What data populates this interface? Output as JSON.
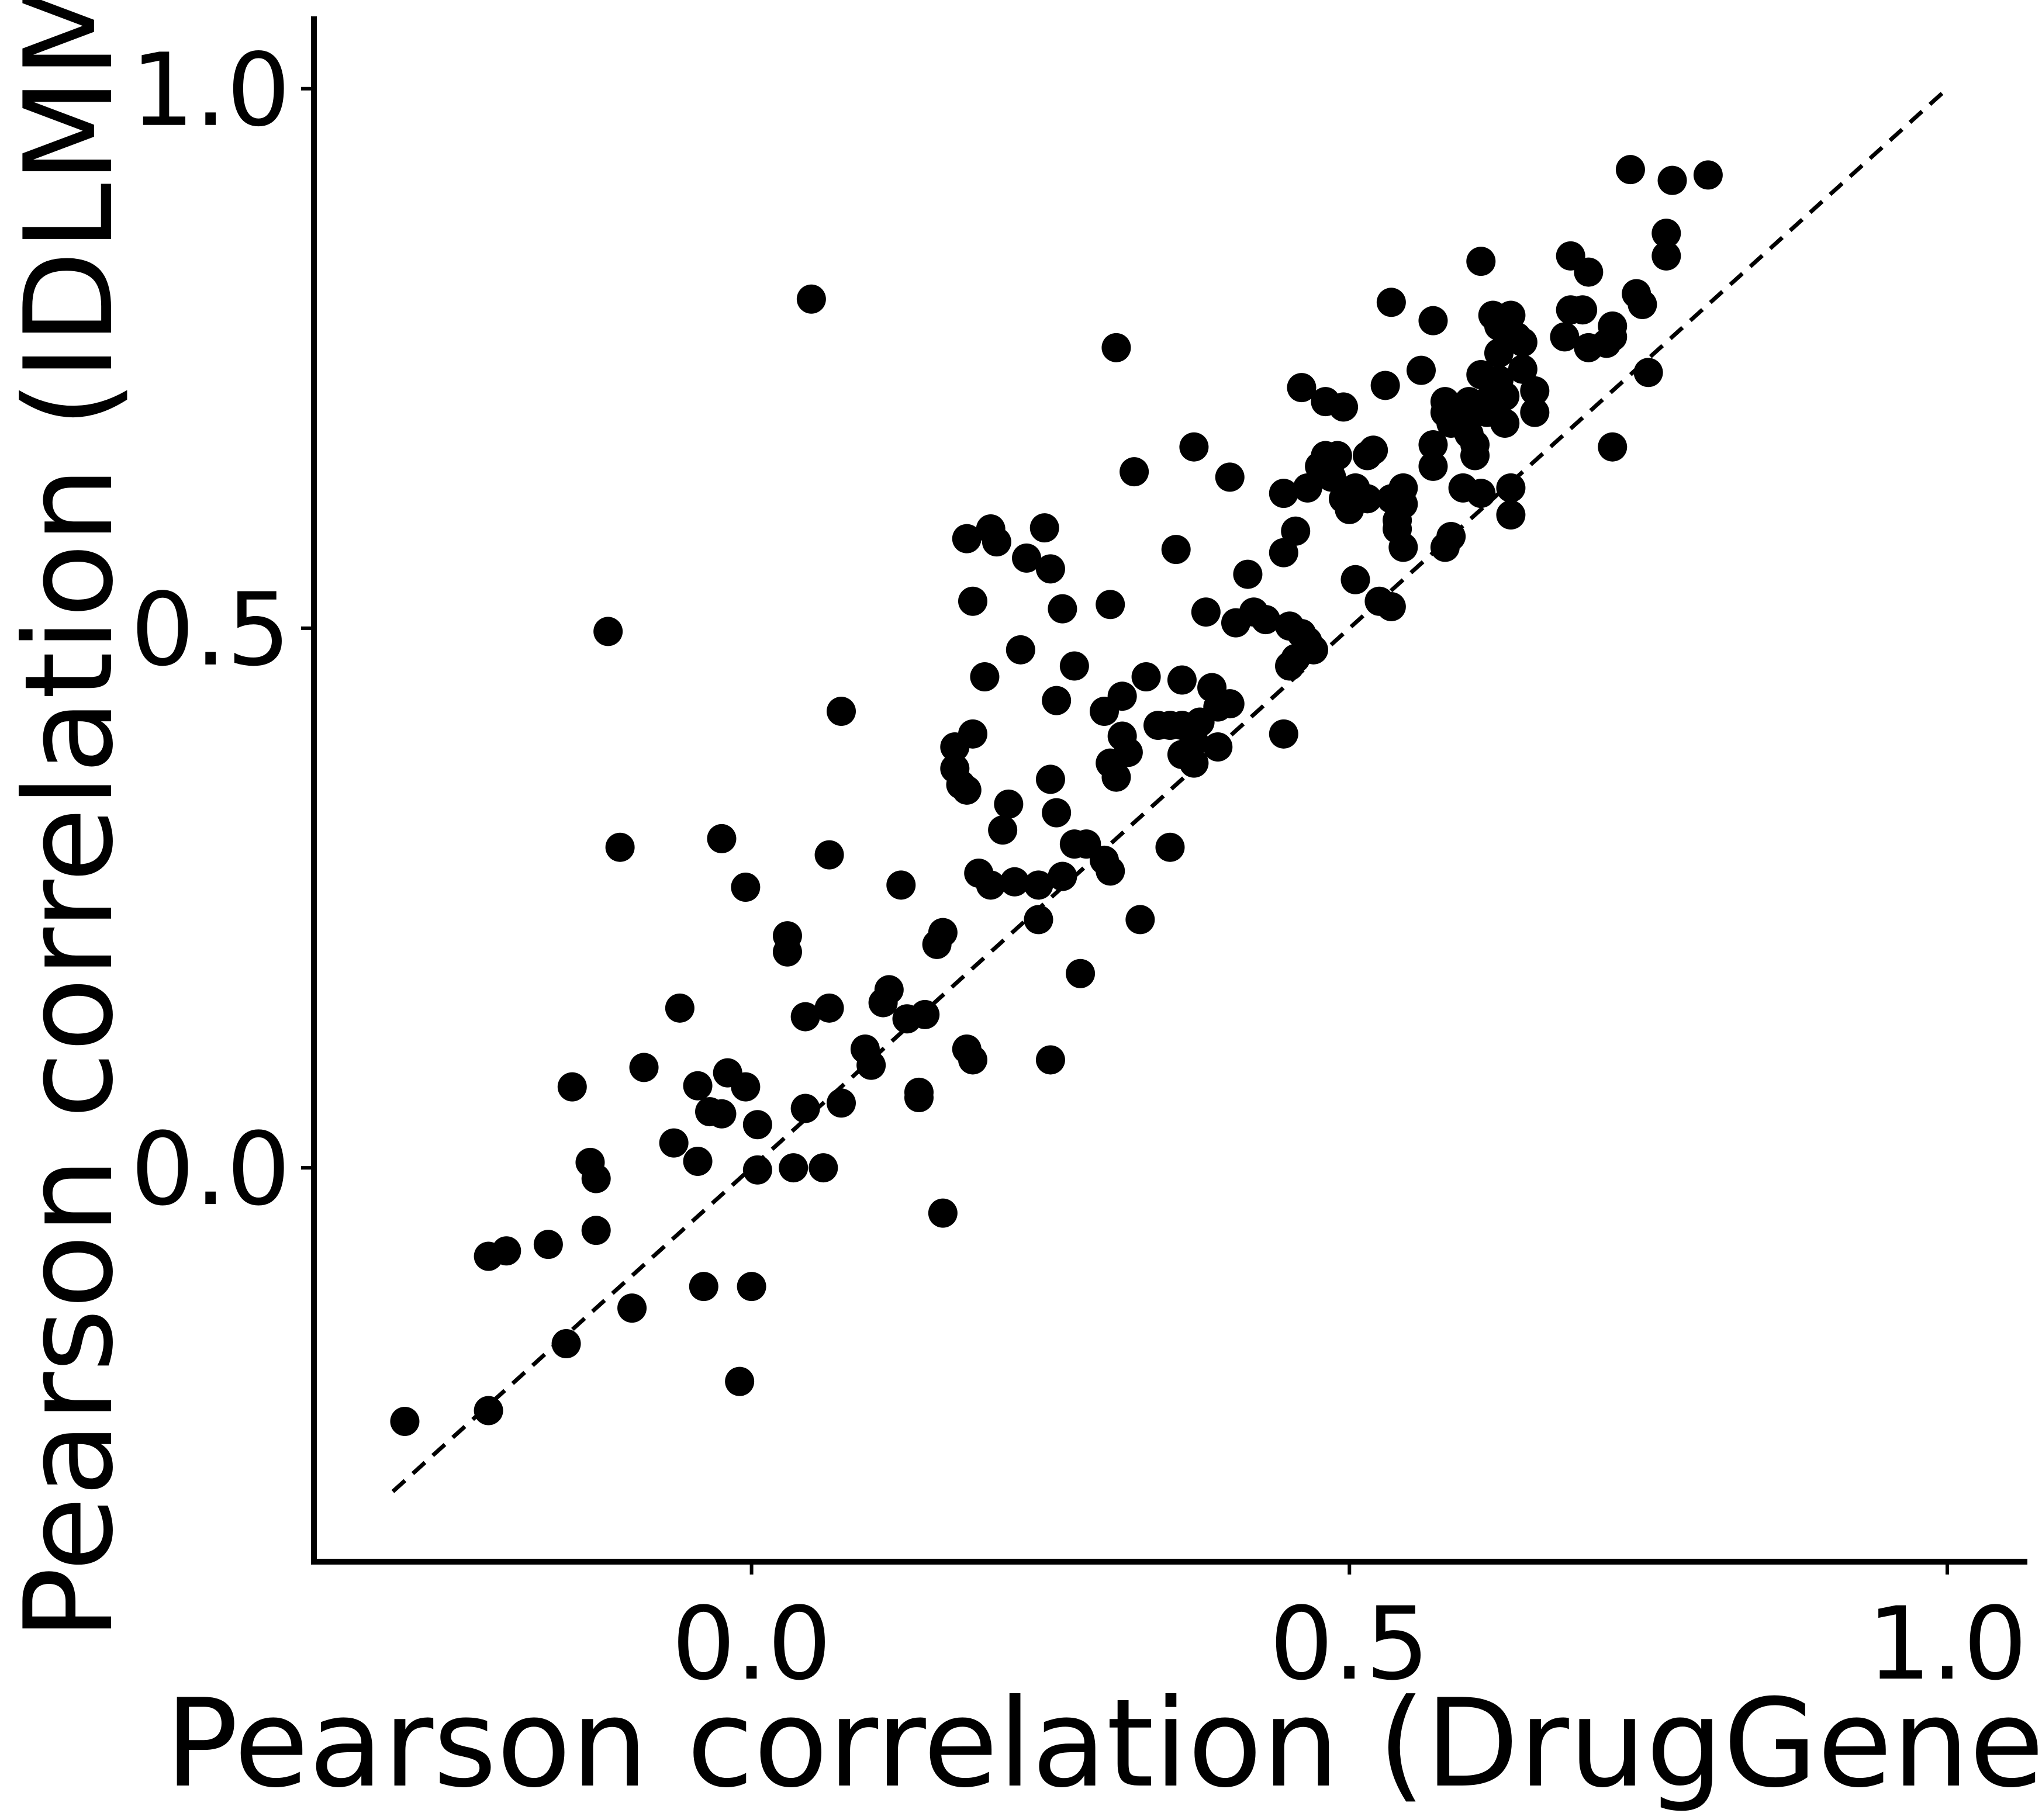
{
  "chart_data": {
    "type": "scatter",
    "title": "",
    "xlabel": "Pearson correlation (DrugGene)",
    "ylabel": "Pearson correlation (IDLMM)",
    "xlim": [
      -0.366,
      1.067
    ],
    "ylim": [
      -0.365,
      1.067
    ],
    "x_ticks": [
      0.0,
      0.5,
      1.0
    ],
    "x_tick_labels": [
      "0.0",
      "0.5",
      "1.0"
    ],
    "y_ticks": [
      0.0,
      0.5,
      1.0
    ],
    "y_tick_labels": [
      "0.0",
      "0.5",
      "1.0"
    ],
    "grid": false,
    "legend": "none",
    "marker_color": "#000000",
    "reference_line": {
      "style": "dashed",
      "color": "#000000",
      "from": [
        -0.3,
        -0.3
      ],
      "to": [
        1.0,
        1.0
      ]
    },
    "points": [
      [
        -0.29,
        -0.235
      ],
      [
        -0.22,
        -0.225
      ],
      [
        -0.22,
        -0.082
      ],
      [
        -0.205,
        -0.077
      ],
      [
        -0.17,
        -0.071
      ],
      [
        -0.155,
        -0.163
      ],
      [
        -0.15,
        0.075
      ],
      [
        -0.135,
        0.005
      ],
      [
        -0.13,
        -0.058
      ],
      [
        -0.13,
        -0.01
      ],
      [
        -0.12,
        0.497
      ],
      [
        -0.11,
        0.297
      ],
      [
        -0.1,
        -0.13
      ],
      [
        -0.09,
        0.093
      ],
      [
        -0.065,
        0.023
      ],
      [
        -0.06,
        0.148
      ],
      [
        -0.045,
        0.076
      ],
      [
        -0.045,
        0.006
      ],
      [
        -0.04,
        -0.11
      ],
      [
        -0.035,
        0.052
      ],
      [
        -0.025,
        0.05
      ],
      [
        -0.025,
        0.305
      ],
      [
        -0.02,
        0.088
      ],
      [
        -0.01,
        -0.198
      ],
      [
        -0.005,
        0.26
      ],
      [
        -0.005,
        0.075
      ],
      [
        0.0,
        -0.11
      ],
      [
        0.005,
        0.04
      ],
      [
        0.005,
        -0.002
      ],
      [
        0.03,
        0.215
      ],
      [
        0.035,
        0.0
      ],
      [
        0.03,
        0.2
      ],
      [
        0.045,
        0.055
      ],
      [
        0.045,
        0.14
      ],
      [
        0.05,
        0.805
      ],
      [
        0.06,
        0.0
      ],
      [
        0.065,
        0.29
      ],
      [
        0.065,
        0.148
      ],
      [
        0.075,
        0.06
      ],
      [
        0.075,
        0.423
      ],
      [
        0.095,
        0.11
      ],
      [
        0.1,
        0.095
      ],
      [
        0.11,
        0.153
      ],
      [
        0.115,
        0.165
      ],
      [
        0.125,
        0.262
      ],
      [
        0.13,
        0.138
      ],
      [
        0.14,
        0.065
      ],
      [
        0.145,
        0.142
      ],
      [
        0.14,
        0.07
      ],
      [
        0.155,
        0.207
      ],
      [
        0.16,
        0.218
      ],
      [
        0.16,
        -0.042
      ],
      [
        0.17,
        0.39
      ],
      [
        0.17,
        0.37
      ],
      [
        0.175,
        0.355
      ],
      [
        0.18,
        0.11
      ],
      [
        0.18,
        0.583
      ],
      [
        0.18,
        0.35
      ],
      [
        0.185,
        0.402
      ],
      [
        0.185,
        0.1
      ],
      [
        0.185,
        0.525
      ],
      [
        0.19,
        0.273
      ],
      [
        0.195,
        0.455
      ],
      [
        0.2,
        0.592
      ],
      [
        0.2,
        0.262
      ],
      [
        0.205,
        0.58
      ],
      [
        0.21,
        0.313
      ],
      [
        0.215,
        0.337
      ],
      [
        0.22,
        0.265
      ],
      [
        0.225,
        0.48
      ],
      [
        0.23,
        0.565
      ],
      [
        0.24,
        0.262
      ],
      [
        0.24,
        0.23
      ],
      [
        0.245,
        0.593
      ],
      [
        0.25,
        0.555
      ],
      [
        0.25,
        0.36
      ],
      [
        0.25,
        0.1
      ],
      [
        0.255,
        0.433
      ],
      [
        0.255,
        0.329
      ],
      [
        0.26,
        0.27
      ],
      [
        0.26,
        0.518
      ],
      [
        0.27,
        0.3
      ],
      [
        0.27,
        0.465
      ],
      [
        0.275,
        0.18
      ],
      [
        0.28,
        0.3
      ],
      [
        0.295,
        0.423
      ],
      [
        0.295,
        0.285
      ],
      [
        0.3,
        0.375
      ],
      [
        0.3,
        0.275
      ],
      [
        0.3,
        0.522
      ],
      [
        0.305,
        0.76
      ],
      [
        0.305,
        0.362
      ],
      [
        0.31,
        0.4
      ],
      [
        0.31,
        0.437
      ],
      [
        0.315,
        0.385
      ],
      [
        0.32,
        0.645
      ],
      [
        0.325,
        0.23
      ],
      [
        0.33,
        0.455
      ],
      [
        0.34,
        0.41
      ],
      [
        0.35,
        0.41
      ],
      [
        0.35,
        0.297
      ],
      [
        0.355,
        0.573
      ],
      [
        0.36,
        0.41
      ],
      [
        0.36,
        0.383
      ],
      [
        0.36,
        0.452
      ],
      [
        0.37,
        0.375
      ],
      [
        0.37,
        0.395
      ],
      [
        0.37,
        0.668
      ],
      [
        0.375,
        0.413
      ],
      [
        0.38,
        0.515
      ],
      [
        0.385,
        0.445
      ],
      [
        0.39,
        0.427
      ],
      [
        0.39,
        0.39
      ],
      [
        0.4,
        0.43
      ],
      [
        0.4,
        0.64
      ],
      [
        0.405,
        0.505
      ],
      [
        0.415,
        0.55
      ],
      [
        0.42,
        0.515
      ],
      [
        0.43,
        0.508
      ],
      [
        0.445,
        0.402
      ],
      [
        0.445,
        0.625
      ],
      [
        0.445,
        0.57
      ],
      [
        0.45,
        0.502
      ],
      [
        0.45,
        0.465
      ],
      [
        0.455,
        0.59
      ],
      [
        0.455,
        0.472
      ],
      [
        0.46,
        0.495
      ],
      [
        0.46,
        0.723
      ],
      [
        0.465,
        0.488
      ],
      [
        0.465,
        0.63
      ],
      [
        0.47,
        0.48
      ],
      [
        0.475,
        0.65
      ],
      [
        0.48,
        0.71
      ],
      [
        0.48,
        0.66
      ],
      [
        0.485,
        0.655
      ],
      [
        0.485,
        0.64
      ],
      [
        0.49,
        0.66
      ],
      [
        0.495,
        0.705
      ],
      [
        0.495,
        0.62
      ],
      [
        0.5,
        0.61
      ],
      [
        0.505,
        0.545
      ],
      [
        0.505,
        0.63
      ],
      [
        0.515,
        0.62
      ],
      [
        0.515,
        0.66
      ],
      [
        0.52,
        0.665
      ],
      [
        0.525,
        0.525
      ],
      [
        0.53,
        0.725
      ],
      [
        0.535,
        0.52
      ],
      [
        0.535,
        0.802
      ],
      [
        0.535,
        0.62
      ],
      [
        0.54,
        0.592
      ],
      [
        0.54,
        0.6
      ],
      [
        0.545,
        0.575
      ],
      [
        0.545,
        0.63
      ],
      [
        0.545,
        0.615
      ],
      [
        0.56,
        0.739
      ],
      [
        0.57,
        0.67
      ],
      [
        0.57,
        0.65
      ],
      [
        0.57,
        0.785
      ],
      [
        0.58,
        0.575
      ],
      [
        0.58,
        0.7
      ],
      [
        0.58,
        0.71
      ],
      [
        0.585,
        0.585
      ],
      [
        0.585,
        0.69
      ],
      [
        0.59,
        0.69
      ],
      [
        0.595,
        0.63
      ],
      [
        0.6,
        0.7
      ],
      [
        0.6,
        0.68
      ],
      [
        0.6,
        0.71
      ],
      [
        0.605,
        0.66
      ],
      [
        0.605,
        0.67
      ],
      [
        0.61,
        0.735
      ],
      [
        0.61,
        0.84
      ],
      [
        0.61,
        0.625
      ],
      [
        0.615,
        0.7
      ],
      [
        0.615,
        0.71
      ],
      [
        0.62,
        0.79
      ],
      [
        0.62,
        0.725
      ],
      [
        0.625,
        0.78
      ],
      [
        0.625,
        0.755
      ],
      [
        0.625,
        0.73
      ],
      [
        0.63,
        0.715
      ],
      [
        0.63,
        0.69
      ],
      [
        0.635,
        0.79
      ],
      [
        0.635,
        0.605
      ],
      [
        0.635,
        0.63
      ],
      [
        0.64,
        0.77
      ],
      [
        0.645,
        0.74
      ],
      [
        0.645,
        0.765
      ],
      [
        0.655,
        0.7
      ],
      [
        0.655,
        0.72
      ],
      [
        0.68,
        0.77
      ],
      [
        0.685,
        0.795
      ],
      [
        0.685,
        0.845
      ],
      [
        0.695,
        0.795
      ],
      [
        0.7,
        0.83
      ],
      [
        0.7,
        0.76
      ],
      [
        0.715,
        0.764
      ],
      [
        0.72,
        0.668
      ],
      [
        0.72,
        0.78
      ],
      [
        0.72,
        0.77
      ],
      [
        0.735,
        0.925
      ],
      [
        0.74,
        0.81
      ],
      [
        0.745,
        0.8
      ],
      [
        0.75,
        0.737
      ],
      [
        0.765,
        0.845
      ],
      [
        0.765,
        0.866
      ],
      [
        0.77,
        0.915
      ],
      [
        0.8,
        0.92
      ]
    ]
  }
}
